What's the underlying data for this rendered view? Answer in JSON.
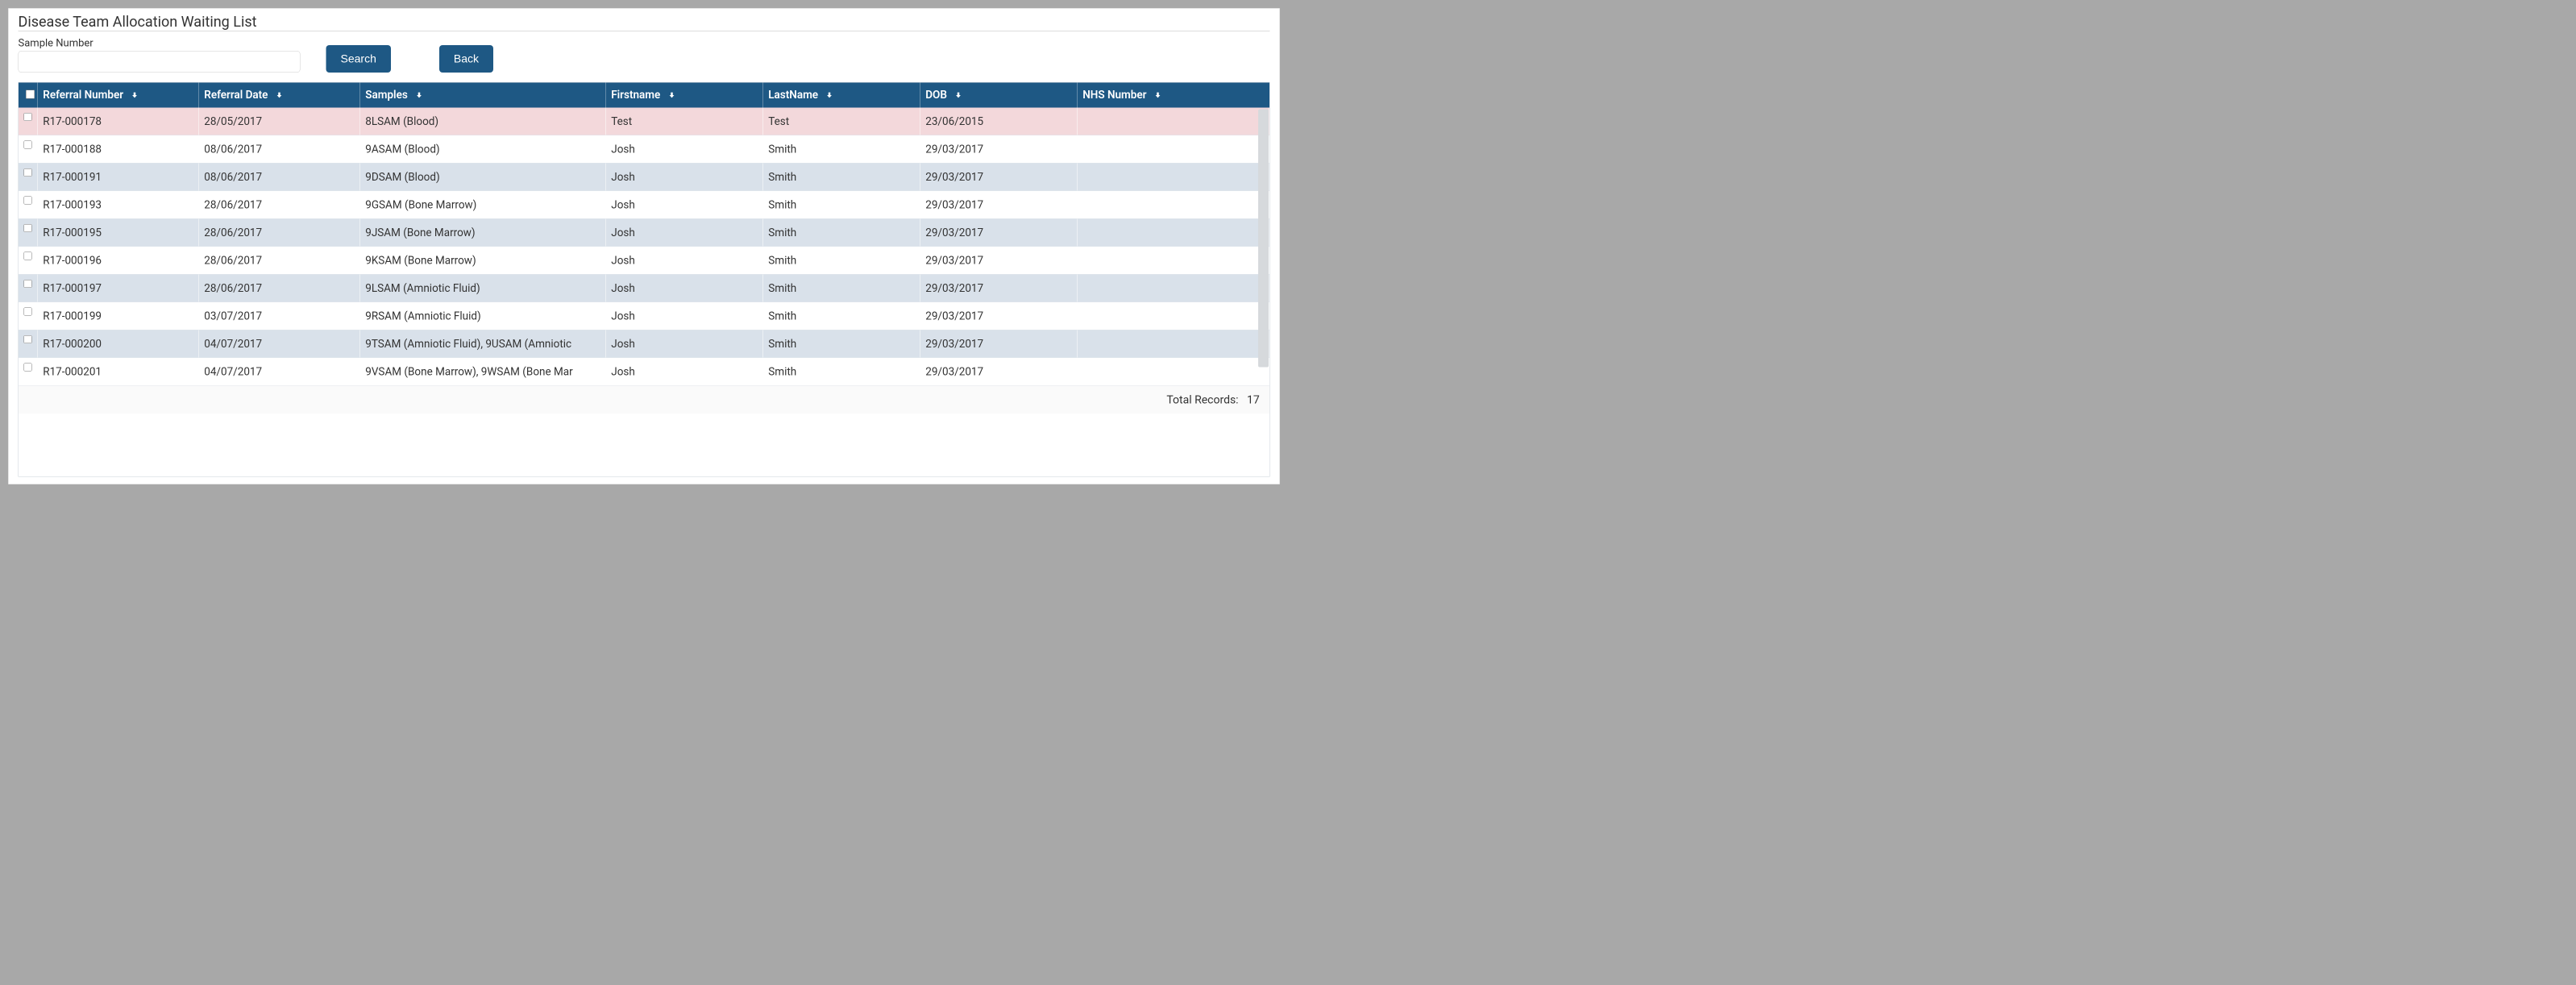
{
  "title": "Disease Team Allocation Waiting List",
  "search": {
    "label": "Sample Number",
    "value": "",
    "searchButton": "Search",
    "backButton": "Back"
  },
  "colors": {
    "headerBg": "#1e5884",
    "highlightRowBg": "#f3d8db",
    "altRowBg": "#d9e1ea",
    "plainRowBg": "#ffffff",
    "borderGray": "#c9d0d8"
  },
  "table": {
    "columns": [
      {
        "key": "referral",
        "label": "Referral Number",
        "sortable": true
      },
      {
        "key": "date",
        "label": "Referral Date",
        "sortable": true
      },
      {
        "key": "samples",
        "label": "Samples",
        "sortable": true
      },
      {
        "key": "first",
        "label": "Firstname",
        "sortable": true
      },
      {
        "key": "last",
        "label": "LastName",
        "sortable": true
      },
      {
        "key": "dob",
        "label": "DOB",
        "sortable": true
      },
      {
        "key": "nhs",
        "label": "NHS Number",
        "sortable": true
      }
    ],
    "rows": [
      {
        "style": "hl",
        "referral": "R17-000178",
        "date": "28/05/2017",
        "samples": "8LSAM (Blood)",
        "first": "Test",
        "last": "Test",
        "dob": "23/06/2015",
        "nhs": ""
      },
      {
        "style": "plain",
        "referral": "R17-000188",
        "date": "08/06/2017",
        "samples": "9ASAM (Blood)",
        "first": "Josh",
        "last": "Smith",
        "dob": "29/03/2017",
        "nhs": ""
      },
      {
        "style": "alt",
        "referral": "R17-000191",
        "date": "08/06/2017",
        "samples": "9DSAM (Blood)",
        "first": "Josh",
        "last": "Smith",
        "dob": "29/03/2017",
        "nhs": ""
      },
      {
        "style": "plain",
        "referral": "R17-000193",
        "date": "28/06/2017",
        "samples": "9GSAM (Bone Marrow)",
        "first": "Josh",
        "last": "Smith",
        "dob": "29/03/2017",
        "nhs": ""
      },
      {
        "style": "alt",
        "referral": "R17-000195",
        "date": "28/06/2017",
        "samples": "9JSAM (Bone Marrow)",
        "first": "Josh",
        "last": "Smith",
        "dob": "29/03/2017",
        "nhs": ""
      },
      {
        "style": "plain",
        "referral": "R17-000196",
        "date": "28/06/2017",
        "samples": "9KSAM (Bone Marrow)",
        "first": "Josh",
        "last": "Smith",
        "dob": "29/03/2017",
        "nhs": ""
      },
      {
        "style": "alt",
        "referral": "R17-000197",
        "date": "28/06/2017",
        "samples": "9LSAM (Amniotic Fluid)",
        "first": "Josh",
        "last": "Smith",
        "dob": "29/03/2017",
        "nhs": ""
      },
      {
        "style": "plain",
        "referral": "R17-000199",
        "date": "03/07/2017",
        "samples": "9RSAM (Amniotic Fluid)",
        "first": "Josh",
        "last": "Smith",
        "dob": "29/03/2017",
        "nhs": ""
      },
      {
        "style": "alt",
        "referral": "R17-000200",
        "date": "04/07/2017",
        "samples": "9TSAM (Amniotic Fluid), 9USAM (Amniotic",
        "first": "Josh",
        "last": "Smith",
        "dob": "29/03/2017",
        "nhs": ""
      },
      {
        "style": "plain",
        "referral": "R17-000201",
        "date": "04/07/2017",
        "samples": "9VSAM (Bone Marrow), 9WSAM (Bone Mar",
        "first": "Josh",
        "last": "Smith",
        "dob": "29/03/2017",
        "nhs": ""
      }
    ],
    "footerLabel": "Total Records:",
    "footerCount": "17"
  }
}
